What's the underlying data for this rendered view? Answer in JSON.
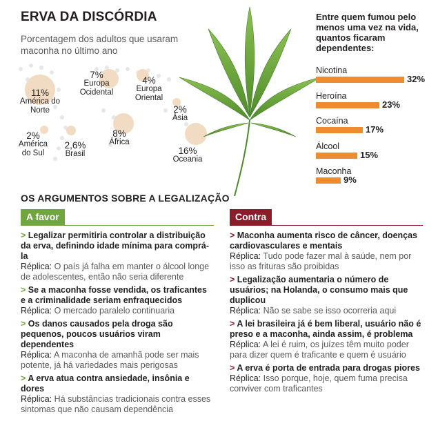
{
  "header": {
    "title": "ERVA DA DISCÓRDIA",
    "subtitle": "Porcentagem dos adultos que usaram maconha no último ano"
  },
  "regions": [
    {
      "pct": "11%",
      "name": "América do Norte"
    },
    {
      "pct": "7%",
      "name": "Europa Ocidental"
    },
    {
      "pct": "4%",
      "name": "Europa Oriental"
    },
    {
      "pct": "2%",
      "name": "Ásia"
    },
    {
      "pct": "8%",
      "name": "África"
    },
    {
      "pct": "2%",
      "name": "América do Sul"
    },
    {
      "pct": "2,6%",
      "name": "Brasil"
    },
    {
      "pct": "16%",
      "name": "Oceania"
    }
  ],
  "dependence": {
    "title": "Entre quem fumou pelo menos uma vez na vida, quantos ficaram dependentes:",
    "items": [
      {
        "name": "Nicotina",
        "label": "32%",
        "value": 32
      },
      {
        "name": "Heroína",
        "label": "23%",
        "value": 23
      },
      {
        "name": "Cocaína",
        "label": "17%",
        "value": 17
      },
      {
        "name": "Álcool",
        "label": "15%",
        "value": 15
      },
      {
        "name": "Maconha",
        "label": "9%",
        "value": 9
      }
    ],
    "bar_color": "#ef8c30"
  },
  "arguments": {
    "title": "OS ARGUMENTOS SOBRE A LEGALIZAÇÃO",
    "favor": {
      "label": "A favor",
      "color": "#6fa63d",
      "items": [
        {
          "head": "Legalizar permitiria controlar a distribuição da erva, definindo idade mínima para comprá-la",
          "rep": "O país já falha em manter o álcool longe de adolescentes, então não seria diferente"
        },
        {
          "head": "Se a maconha fosse vendida, os traficantes e a criminalidade seriam enfraquecidos",
          "rep": "O mercado paralelo continuaria"
        },
        {
          "head": "Os danos causados pela droga são pequenos, poucos usuários viram dependentes",
          "rep": "A maconha de amanhã pode ser mais potente, já há variedades mais perigosas"
        },
        {
          "head": "A erva atua contra ansiedade, insônia e dores",
          "rep": "Há substâncias tradicionais contra esses sintomas que não causam dependência"
        }
      ]
    },
    "contra": {
      "label": "Contra",
      "color": "#8c1c2a",
      "items": [
        {
          "head": "Maconha aumenta risco de câncer, doenças cardiovasculares e mentais",
          "rep": "Tudo pode fazer mal à saúde, nem por isso as frituras são proibidas"
        },
        {
          "head": "Legalização aumentaria o número de usuários; na Holanda, o consumo mais que duplicou",
          "rep": "Não se sabe se isso ocorreria aqui"
        },
        {
          "head": "A lei brasileira já é bem liberal, usuário não é preso e a maconha, ainda assim, é problema",
          "rep": "A lei é ruim, os juízes têm muito poder para dizer quem é traficante e quem é usuário"
        },
        {
          "head": "A erva é porta de entrada para drogas piores",
          "rep": "Isso porque, hoje, quem fuma precisa conviver com traficantes"
        }
      ]
    },
    "replica_label": "Réplica:",
    "marker": ">"
  }
}
